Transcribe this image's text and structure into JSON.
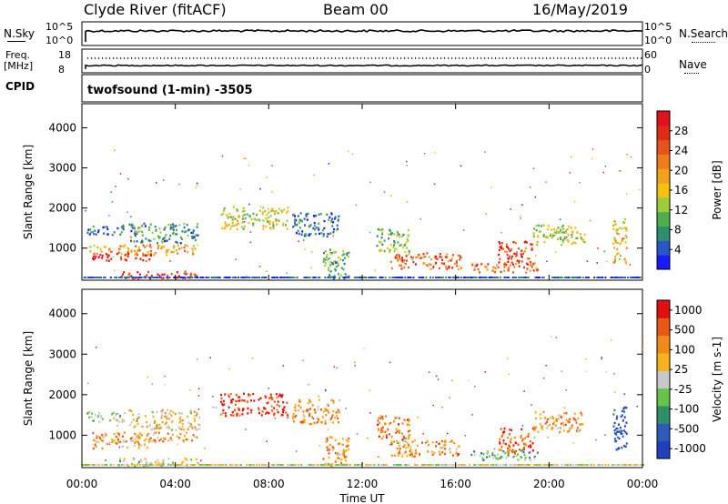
{
  "header": {
    "station": "Clyde River (fitACF)",
    "beam": "Beam 00",
    "date": "16/May/2019"
  },
  "top_panels": {
    "nsky_label": "N.Sky",
    "nsky_ticks": [
      "10^5",
      "10^0"
    ],
    "nsearch_label": "N.Search",
    "nsearch_ticks": [
      "10^5",
      "10^0"
    ],
    "freq_label": "Freq.",
    "freq_unit": "[MHz]",
    "freq_ticks": [
      "18",
      "8"
    ],
    "nave_label": "Nave",
    "nave_ticks": [
      "60",
      "0"
    ],
    "cpid_label": "CPID",
    "cpid_text": "twofsound (1-min) -3505"
  },
  "chart_data": [
    {
      "type": "heatmap",
      "name": "power",
      "ylabel": "Slant Range [km]",
      "yticks": [
        1000,
        2000,
        3000,
        4000
      ],
      "ylim": [
        200,
        4600
      ],
      "xticks": [
        "00:00",
        "04:00",
        "08:00",
        "12:00",
        "16:00",
        "20:00",
        "00:00"
      ],
      "xlim_hours": [
        0,
        24
      ],
      "colorbar": {
        "label": "Power [dB]",
        "ticks": [
          "4",
          "8",
          "12",
          "16",
          "20",
          "24",
          "28"
        ],
        "colors": [
          "#1a1aff",
          "#2a56c6",
          "#2f8f6a",
          "#4caf50",
          "#9ccc3a",
          "#f4c20d",
          "#f2a21a",
          "#ef7d1c",
          "#e5531a",
          "#e02b17",
          "#e0101c"
        ]
      },
      "scatter_regions": [
        {
          "t": [
            0.3,
            4.9
          ],
          "r": [
            850,
            1100
          ],
          "level": 0.6
        },
        {
          "t": [
            0.4,
            3.0
          ],
          "r": [
            700,
            900
          ],
          "level": 0.9
        },
        {
          "t": [
            2.0,
            5.0
          ],
          "r": [
            1150,
            1650
          ],
          "level": 0.25
        },
        {
          "t": [
            0.2,
            1.8
          ],
          "r": [
            1350,
            1600
          ],
          "level": 0.15
        },
        {
          "t": [
            5.9,
            8.8
          ],
          "r": [
            1500,
            2050
          ],
          "level": 0.45
        },
        {
          "t": [
            9.0,
            11.0
          ],
          "r": [
            1300,
            1900
          ],
          "level": 0.2
        },
        {
          "t": [
            10.3,
            11.4
          ],
          "r": [
            250,
            1000
          ],
          "level": 0.3
        },
        {
          "t": [
            13.2,
            16.2
          ],
          "r": [
            500,
            900
          ],
          "level": 0.75
        },
        {
          "t": [
            12.6,
            14.0
          ],
          "r": [
            900,
            1500
          ],
          "level": 0.35
        },
        {
          "t": [
            16.6,
            19.5
          ],
          "r": [
            400,
            650
          ],
          "level": 0.7
        },
        {
          "t": [
            17.8,
            19.3
          ],
          "r": [
            600,
            1200
          ],
          "level": 0.8
        },
        {
          "t": [
            19.3,
            21.5
          ],
          "r": [
            1100,
            1600
          ],
          "level": 0.45
        },
        {
          "t": [
            22.7,
            23.3
          ],
          "r": [
            650,
            1750
          ],
          "level": 0.55
        },
        {
          "t": [
            1.5,
            5.0
          ],
          "r": [
            250,
            450
          ],
          "level": 0.85
        }
      ]
    },
    {
      "type": "heatmap",
      "name": "velocity",
      "ylabel": "Slant Range [km]",
      "yticks": [
        1000,
        2000,
        3000,
        4000
      ],
      "ylim": [
        200,
        4600
      ],
      "xticks": [
        "00:00",
        "04:00",
        "08:00",
        "12:00",
        "16:00",
        "20:00",
        "00:00"
      ],
      "xlim_hours": [
        0,
        24
      ],
      "xlabel": "Time UT",
      "colorbar": {
        "label": "Velocity [m s-1]",
        "ticks": [
          "1000",
          "500",
          "100",
          "25",
          "-25",
          "-100",
          "-500",
          "-1000"
        ],
        "colors": [
          "#1f3fbf",
          "#2c5bb8",
          "#2f8f6a",
          "#66c24a",
          "#c8c8c8",
          "#f6b21a",
          "#f08a1a",
          "#e85a14",
          "#e01010"
        ]
      },
      "scatter_regions": [
        {
          "t": [
            0.3,
            4.9
          ],
          "r": [
            850,
            1100
          ],
          "level": 0.7
        },
        {
          "t": [
            0.4,
            3.0
          ],
          "r": [
            700,
            900
          ],
          "level": 0.65
        },
        {
          "t": [
            2.0,
            5.0
          ],
          "r": [
            1150,
            1650
          ],
          "level": 0.6
        },
        {
          "t": [
            0.2,
            1.8
          ],
          "r": [
            1350,
            1600
          ],
          "level": 0.45
        },
        {
          "t": [
            5.9,
            8.8
          ],
          "r": [
            1500,
            2050
          ],
          "level": 0.9
        },
        {
          "t": [
            9.0,
            11.0
          ],
          "r": [
            1300,
            1900
          ],
          "level": 0.7
        },
        {
          "t": [
            10.3,
            11.4
          ],
          "r": [
            250,
            1000
          ],
          "level": 0.68
        },
        {
          "t": [
            13.2,
            16.2
          ],
          "r": [
            500,
            900
          ],
          "level": 0.72
        },
        {
          "t": [
            12.6,
            14.0
          ],
          "r": [
            900,
            1500
          ],
          "level": 0.75
        },
        {
          "t": [
            16.6,
            19.5
          ],
          "r": [
            400,
            650
          ],
          "level": 0.35
        },
        {
          "t": [
            17.8,
            19.3
          ],
          "r": [
            600,
            1200
          ],
          "level": 0.85
        },
        {
          "t": [
            19.3,
            21.5
          ],
          "r": [
            1100,
            1600
          ],
          "level": 0.7
        },
        {
          "t": [
            22.7,
            23.3
          ],
          "r": [
            650,
            1750
          ],
          "level": 0.1
        },
        {
          "t": [
            1.5,
            5.0
          ],
          "r": [
            250,
            450
          ],
          "level": 0.5
        }
      ]
    }
  ],
  "timeseries": {
    "nsky_level": 0.6,
    "freq_upper_level": 0.45,
    "freq_lower_level": 0.1
  }
}
